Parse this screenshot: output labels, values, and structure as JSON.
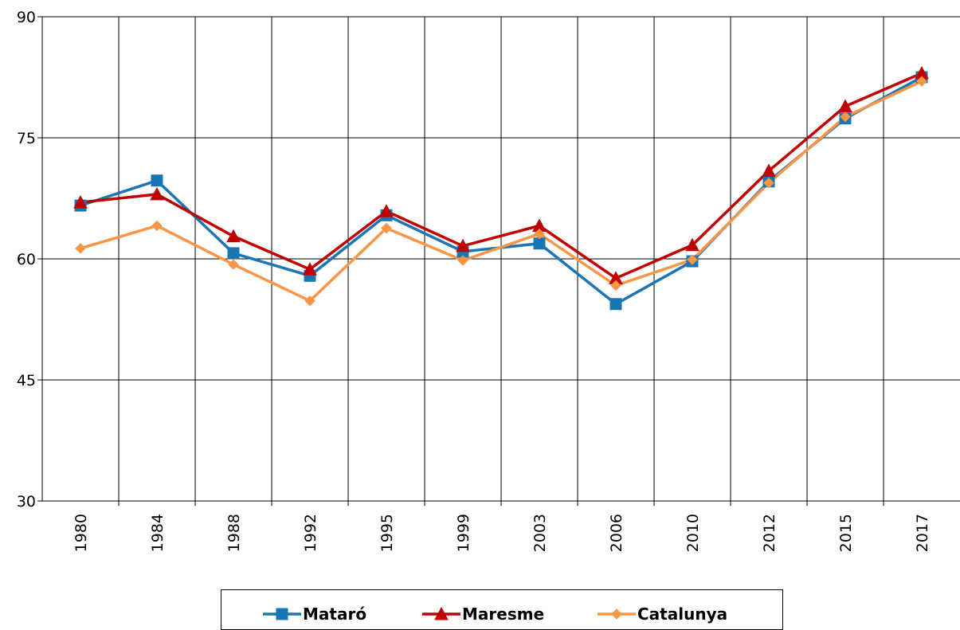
{
  "chart_data": {
    "type": "line",
    "categories": [
      "1980",
      "1984",
      "1988",
      "1992",
      "1995",
      "1999",
      "2003",
      "2006",
      "2010",
      "2012",
      "2015",
      "2017"
    ],
    "series": [
      {
        "name": "Mataró",
        "color": "#1a75b4",
        "marker": "square",
        "values": [
          66.6,
          69.7,
          60.7,
          57.9,
          65.4,
          60.9,
          61.9,
          54.4,
          59.7,
          69.6,
          77.4,
          82.5
        ]
      },
      {
        "name": "Maresme",
        "color": "#c00000",
        "marker": "triangle",
        "values": [
          67.0,
          68.0,
          62.8,
          58.7,
          65.9,
          61.6,
          64.1,
          57.6,
          61.7,
          70.9,
          78.9,
          83.0
        ]
      },
      {
        "name": "Catalunya",
        "color": "#f79646",
        "marker": "diamond",
        "values": [
          61.3,
          64.1,
          59.3,
          54.8,
          63.8,
          59.8,
          63.1,
          56.7,
          59.9,
          69.4,
          77.6,
          82.0
        ]
      }
    ],
    "ylim": [
      30,
      90
    ],
    "yticks": [
      30,
      45,
      60,
      75,
      90
    ],
    "grid": true,
    "legend": "bottom"
  }
}
